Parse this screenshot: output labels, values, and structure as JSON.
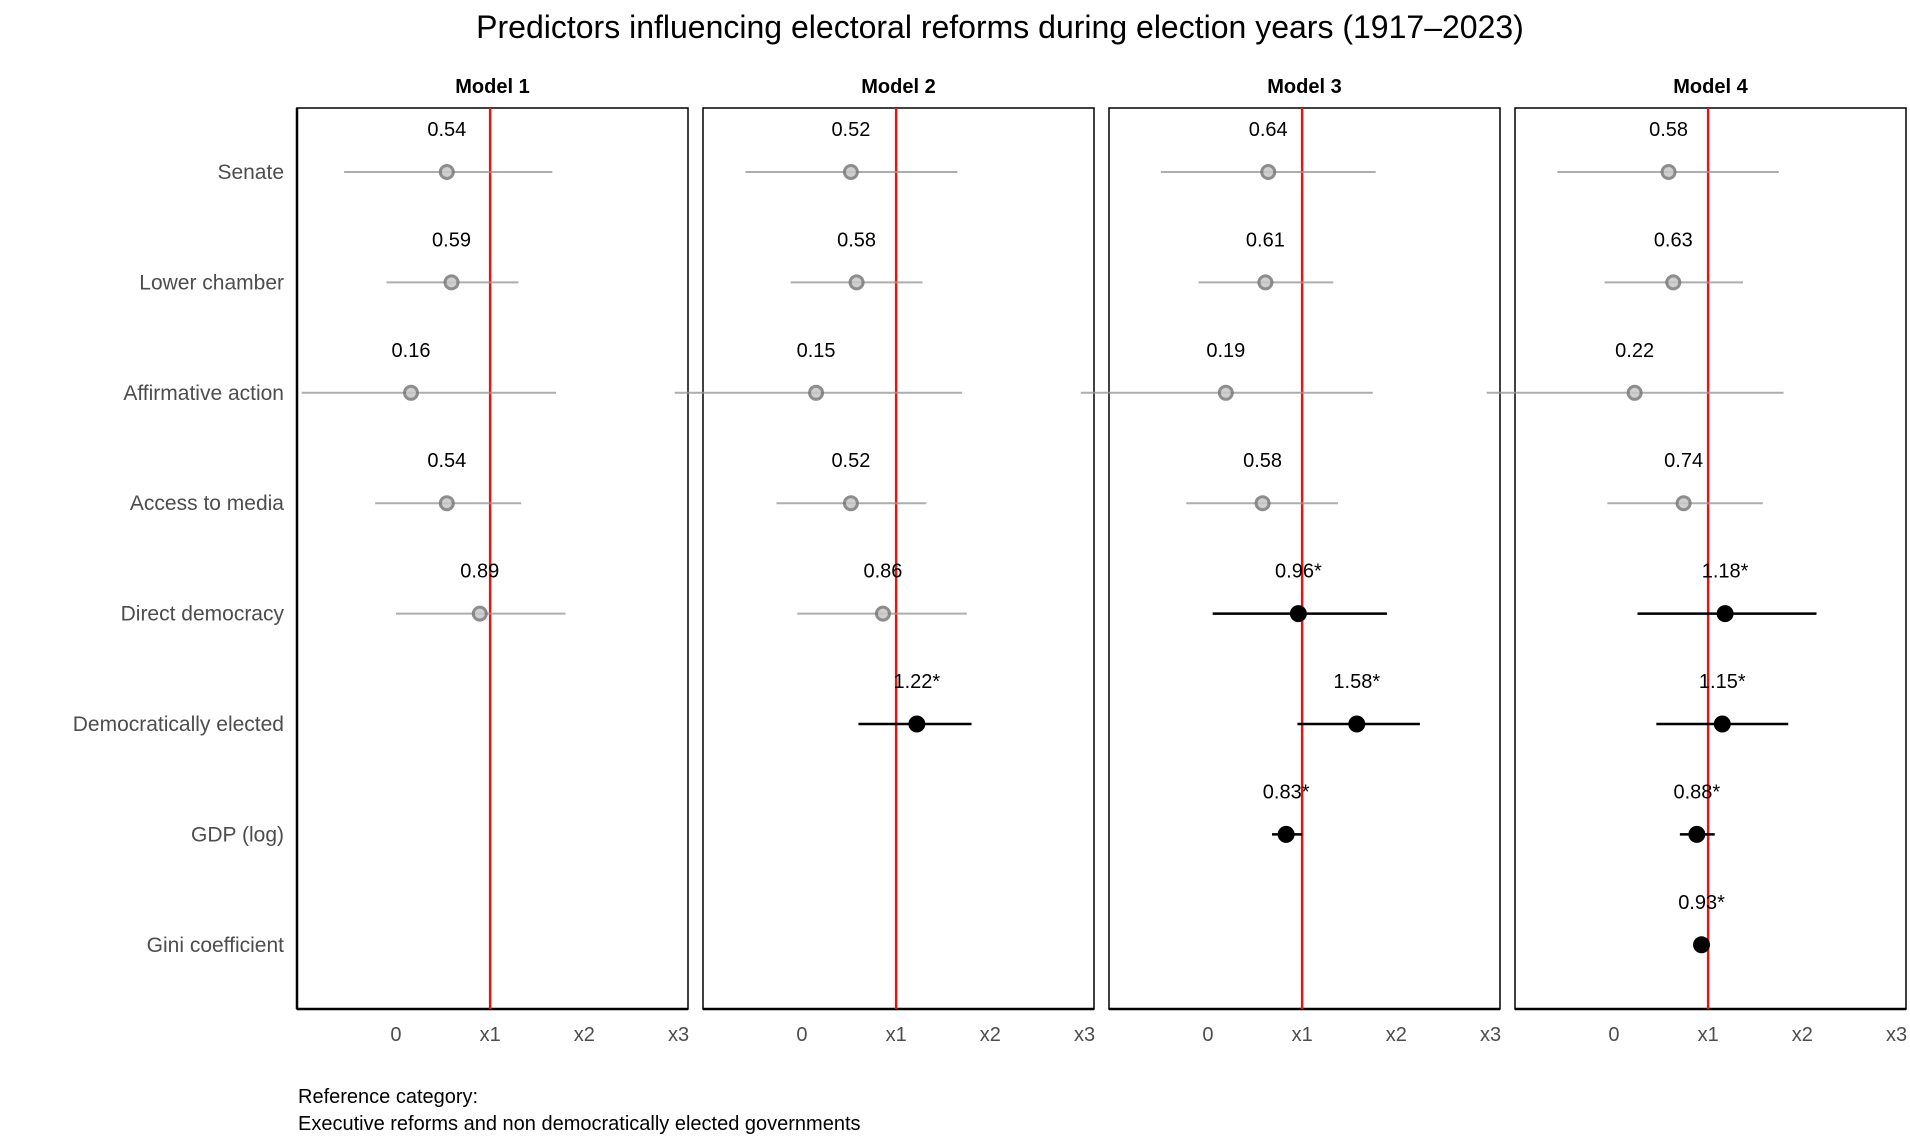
{
  "chart_data": {
    "type": "scatter",
    "subtype": "coefficient-plot-faceted",
    "title": "Predictors influencing electoral reforms during election years (1917–2023)",
    "caption_lines": [
      "Reference category:",
      "Executive reforms and non democratically elected governments"
    ],
    "x_ticks": [
      {
        "value": 0,
        "label": "0"
      },
      {
        "value": 1,
        "label": "x1"
      },
      {
        "value": 2,
        "label": "x2"
      },
      {
        "value": 3,
        "label": "x3"
      }
    ],
    "xlim": [
      -1.05,
      3.1
    ],
    "reference_line": {
      "value": 1,
      "color": "#e8150e"
    },
    "categories": [
      "Senate",
      "Lower chamber",
      "Affirmative action",
      "Access to media",
      "Direct democracy",
      "Democratically elected",
      "GDP (log)",
      "Gini coefficient"
    ],
    "colors": {
      "significant": "#000000",
      "non_significant": "#999999"
    },
    "grid": false,
    "facets": [
      {
        "name": "Model 1",
        "points": [
          {
            "category": "Senate",
            "estimate": 0.54,
            "low": -0.55,
            "high": 1.66,
            "label": "0.54",
            "significant": false
          },
          {
            "category": "Lower chamber",
            "estimate": 0.59,
            "low": -0.1,
            "high": 1.3,
            "label": "0.59",
            "significant": false
          },
          {
            "category": "Affirmative action",
            "estimate": 0.16,
            "low": -1.0,
            "high": 1.7,
            "label": "0.16",
            "significant": false
          },
          {
            "category": "Access to media",
            "estimate": 0.54,
            "low": -0.22,
            "high": 1.33,
            "label": "0.54",
            "significant": false
          },
          {
            "category": "Direct democracy",
            "estimate": 0.89,
            "low": 0.0,
            "high": 1.8,
            "label": "0.89",
            "significant": false
          }
        ]
      },
      {
        "name": "Model 2",
        "points": [
          {
            "category": "Senate",
            "estimate": 0.52,
            "low": -0.6,
            "high": 1.65,
            "label": "0.52",
            "significant": false
          },
          {
            "category": "Lower chamber",
            "estimate": 0.58,
            "low": -0.12,
            "high": 1.28,
            "label": "0.58",
            "significant": false
          },
          {
            "category": "Affirmative action",
            "estimate": 0.15,
            "low": -1.35,
            "high": 1.7,
            "label": "0.15",
            "significant": false
          },
          {
            "category": "Access to media",
            "estimate": 0.52,
            "low": -0.27,
            "high": 1.32,
            "label": "0.52",
            "significant": false
          },
          {
            "category": "Direct democracy",
            "estimate": 0.86,
            "low": -0.05,
            "high": 1.75,
            "label": "0.86",
            "significant": false
          },
          {
            "category": "Democratically elected",
            "estimate": 1.22,
            "low": 0.6,
            "high": 1.8,
            "label": "1.22*",
            "significant": true
          }
        ]
      },
      {
        "name": "Model 3",
        "points": [
          {
            "category": "Senate",
            "estimate": 0.64,
            "low": -0.5,
            "high": 1.78,
            "label": "0.64",
            "significant": false
          },
          {
            "category": "Lower chamber",
            "estimate": 0.61,
            "low": -0.1,
            "high": 1.33,
            "label": "0.61",
            "significant": false
          },
          {
            "category": "Affirmative action",
            "estimate": 0.19,
            "low": -1.35,
            "high": 1.75,
            "label": "0.19",
            "significant": false
          },
          {
            "category": "Access to media",
            "estimate": 0.58,
            "low": -0.23,
            "high": 1.38,
            "label": "0.58",
            "significant": false
          },
          {
            "category": "Direct democracy",
            "estimate": 0.96,
            "low": 0.05,
            "high": 1.9,
            "label": "0.96*",
            "significant": true
          },
          {
            "category": "Democratically elected",
            "estimate": 1.58,
            "low": 0.95,
            "high": 2.25,
            "label": "1.58*",
            "significant": true
          },
          {
            "category": "GDP (log)",
            "estimate": 0.83,
            "low": 0.68,
            "high": 1.0,
            "label": "0.83*",
            "significant": true
          }
        ]
      },
      {
        "name": "Model 4",
        "points": [
          {
            "category": "Senate",
            "estimate": 0.58,
            "low": -0.6,
            "high": 1.75,
            "label": "0.58",
            "significant": false
          },
          {
            "category": "Lower chamber",
            "estimate": 0.63,
            "low": -0.1,
            "high": 1.37,
            "label": "0.63",
            "significant": false
          },
          {
            "category": "Affirmative action",
            "estimate": 0.22,
            "low": -1.35,
            "high": 1.8,
            "label": "0.22",
            "significant": false
          },
          {
            "category": "Access to media",
            "estimate": 0.74,
            "low": -0.07,
            "high": 1.58,
            "label": "0.74",
            "significant": false
          },
          {
            "category": "Direct democracy",
            "estimate": 1.18,
            "low": 0.25,
            "high": 2.15,
            "label": "1.18*",
            "significant": true
          },
          {
            "category": "Democratically elected",
            "estimate": 1.15,
            "low": 0.45,
            "high": 1.85,
            "label": "1.15*",
            "significant": true
          },
          {
            "category": "GDP (log)",
            "estimate": 0.88,
            "low": 0.7,
            "high": 1.07,
            "label": "0.88*",
            "significant": true
          },
          {
            "category": "Gini coefficient",
            "estimate": 0.93,
            "low": 0.9,
            "high": 0.97,
            "label": "0.93*",
            "significant": true
          }
        ]
      }
    ]
  }
}
